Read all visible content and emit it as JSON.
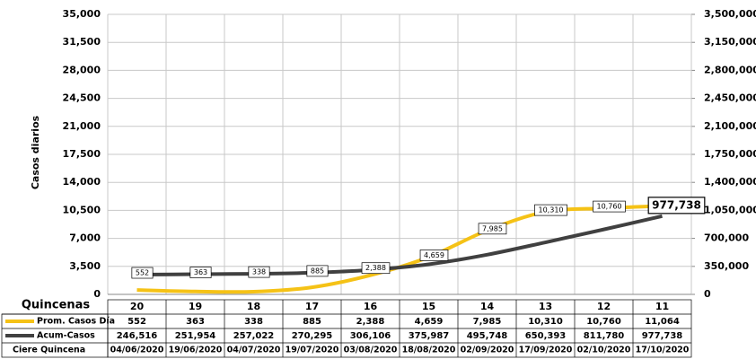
{
  "chart_data": {
    "type": "line",
    "y_label": "Casos diarios",
    "x_label": "Quincenas",
    "categories": [
      "20",
      "19",
      "18",
      "17",
      "16",
      "15",
      "14",
      "13",
      "12",
      "11"
    ],
    "dates_label": "Ciere Quincena",
    "dates": [
      "04/06/2020",
      "19/06/2020",
      "04/07/2020",
      "19/07/2020",
      "03/08/2020",
      "18/08/2020",
      "02/09/2020",
      "17/09/2020",
      "02/10/2020",
      "17/10/2020"
    ],
    "series": [
      {
        "name": "Prom. Casos Día",
        "color": "#f5c216",
        "values": [
          552,
          363,
          338,
          885,
          2388,
          4659,
          7985,
          10310,
          10760,
          11064
        ],
        "value_labels": [
          "552",
          "363",
          "338",
          "885",
          "2,388",
          "4,659",
          "7,985",
          "10,310",
          "10,760",
          "11,064"
        ]
      },
      {
        "name": "Acum-Casos",
        "color": "#404040",
        "axis": "y2",
        "values": [
          246516,
          251954,
          257022,
          270295,
          306106,
          375987,
          495748,
          650393,
          811780,
          977738
        ],
        "value_labels": [
          "246,516",
          "251,954",
          "257,022",
          "270,295",
          "306,106",
          "375,987",
          "495,748",
          "650,393",
          "811,780",
          "977,738"
        ]
      }
    ],
    "ylim": [
      0,
      35000
    ],
    "yticks": [
      0,
      {
        "value": 3500,
        "label": "3,500"
      },
      {
        "value": 7000,
        "label": "7,000"
      },
      {
        "value": 10500,
        "label": "10,500"
      },
      {
        "value": 14000,
        "label": "14,000"
      },
      {
        "value": 17500,
        "label": "17,500"
      },
      {
        "value": 21000,
        "label": "21,000"
      },
      {
        "value": 24500,
        "label": "24,500"
      },
      {
        "value": 28000,
        "label": "28,000"
      },
      {
        "value": 31500,
        "label": "31,500"
      },
      {
        "value": 35000,
        "label": "35,000"
      }
    ],
    "y2lim": [
      0,
      3500000
    ],
    "y2ticks": [
      0,
      {
        "value": 350000,
        "label": "350,000"
      },
      {
        "value": 700000,
        "label": "700,000"
      },
      {
        "value": 1050000,
        "label": "1,050,000"
      },
      {
        "value": 1400000,
        "label": "1,400,000"
      },
      {
        "value": 1750000,
        "label": "1,750,000"
      },
      {
        "value": 2100000,
        "label": "2,100,000"
      },
      {
        "value": 2450000,
        "label": "2,450,000"
      },
      {
        "value": 2800000,
        "label": "2,800,000"
      },
      {
        "value": 3150000,
        "label": "3,150,000"
      },
      {
        "value": 3500000,
        "label": "3,500,000"
      }
    ],
    "grid": true
  }
}
